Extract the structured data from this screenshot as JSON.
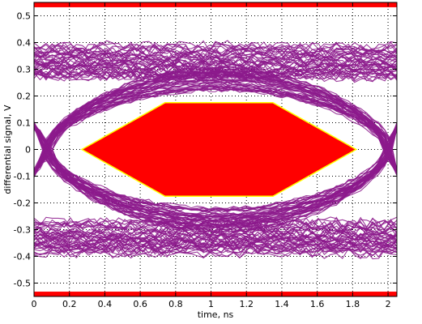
{
  "chart_data": {
    "type": "eye-diagram",
    "xlabel": "time, ns",
    "ylabel": "differential signal, V",
    "xlim": [
      0,
      2.05
    ],
    "ylim": [
      -0.55,
      0.55
    ],
    "grid": "dotted",
    "xticks": [
      0,
      0.2,
      0.4,
      0.6,
      0.8,
      1,
      1.2,
      1.4,
      1.6,
      1.8,
      2
    ],
    "xtick_labels": [
      "0",
      "0.2",
      "0.4",
      "0.6",
      "0.8",
      "1",
      "1.2",
      "1.4",
      "1.6",
      "1.8",
      "2"
    ],
    "yticks": [
      0.5,
      0.4,
      0.3,
      0.2,
      0.1,
      0,
      -0.1,
      -0.2,
      -0.3,
      -0.4,
      -0.5
    ],
    "ytick_labels": [
      "0.5",
      "0.4",
      "0.3",
      "0.2",
      "0.1",
      "0",
      "-0.1",
      "-0.2",
      "-0.3",
      "-0.4",
      "-0.5"
    ],
    "mask": {
      "hexagon": [
        [
          0.27,
          0
        ],
        [
          0.74,
          0.175
        ],
        [
          1.35,
          0.175
        ],
        [
          1.82,
          0
        ],
        [
          1.35,
          -0.175
        ],
        [
          0.74,
          -0.175
        ]
      ],
      "top_band": [
        0.535,
        0.55
      ],
      "bottom_band": [
        -0.55,
        -0.535
      ]
    },
    "signal": {
      "high_level_range": [
        0.27,
        0.39
      ],
      "low_level_range": [
        -0.39,
        -0.27
      ],
      "crossing_times": [
        0.08,
        2.0
      ],
      "eye_inner_high": 0.22,
      "eye_inner_low": -0.22
    },
    "colors": {
      "trace": "#8c1a8c",
      "mask_fill": "#ff0000",
      "mask_edge": "#ffff00",
      "grid": "#000000"
    }
  }
}
